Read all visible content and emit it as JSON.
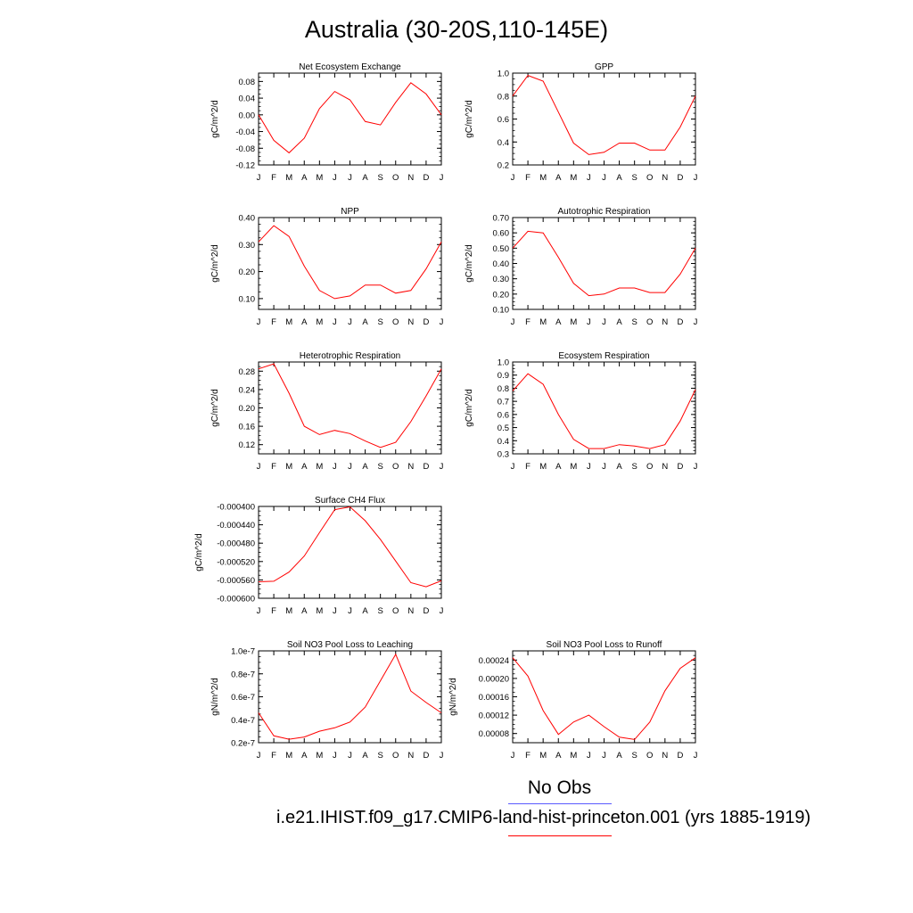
{
  "title": "Australia (30-20S,110-145E)",
  "legend": {
    "obs_label": "No Obs",
    "obs_color": "#5a5aff",
    "model_label": "i.e21.IHIST.f09_g17.CMIP6-land-hist-princeton.001 (yrs 1885-1919)",
    "model_color": "#ff0000"
  },
  "chart_data": [
    {
      "type": "line",
      "title": "Net Ecosystem Exchange",
      "ylabel": "gC/m^2/d",
      "categories": [
        "J",
        "F",
        "M",
        "A",
        "M",
        "J",
        "J",
        "A",
        "S",
        "O",
        "N",
        "D",
        "J"
      ],
      "ylim": [
        -0.12,
        0.1
      ],
      "yticks": [
        -0.12,
        -0.08,
        -0.04,
        0.0,
        0.04,
        0.08
      ],
      "ytick_labels": [
        "-0.12",
        "-0.08",
        "-0.04",
        "0.00",
        "0.04",
        "0.08"
      ],
      "series": [
        {
          "values": [
            0.0,
            -0.061,
            -0.091,
            -0.056,
            0.015,
            0.056,
            0.036,
            -0.016,
            -0.024,
            0.03,
            0.077,
            0.05,
            0.0
          ]
        }
      ]
    },
    {
      "type": "line",
      "title": "GPP",
      "ylabel": "gC/m^2/d",
      "categories": [
        "J",
        "F",
        "M",
        "A",
        "M",
        "J",
        "J",
        "A",
        "S",
        "O",
        "N",
        "D",
        "J"
      ],
      "ylim": [
        0.2,
        1.0
      ],
      "yticks": [
        0.2,
        0.4,
        0.6,
        0.8,
        1.0
      ],
      "ytick_labels": [
        "0.2",
        "0.4",
        "0.6",
        "0.8",
        "1.0"
      ],
      "series": [
        {
          "values": [
            0.8,
            0.98,
            0.93,
            0.66,
            0.39,
            0.29,
            0.31,
            0.39,
            0.39,
            0.33,
            0.33,
            0.53,
            0.8
          ]
        }
      ]
    },
    {
      "type": "line",
      "title": "NPP",
      "ylabel": "gC/m^2/d",
      "categories": [
        "J",
        "F",
        "M",
        "A",
        "M",
        "J",
        "J",
        "A",
        "S",
        "O",
        "N",
        "D",
        "J"
      ],
      "ylim": [
        0.06,
        0.4
      ],
      "yticks": [
        0.1,
        0.2,
        0.3,
        0.4
      ],
      "ytick_labels": [
        "0.10",
        "0.20",
        "0.30",
        "0.40"
      ],
      "series": [
        {
          "values": [
            0.31,
            0.37,
            0.33,
            0.22,
            0.13,
            0.1,
            0.11,
            0.15,
            0.15,
            0.12,
            0.13,
            0.21,
            0.31
          ]
        }
      ]
    },
    {
      "type": "line",
      "title": "Autotrophic Respiration",
      "ylabel": "gC/m^2/d",
      "categories": [
        "J",
        "F",
        "M",
        "A",
        "M",
        "J",
        "J",
        "A",
        "S",
        "O",
        "N",
        "D",
        "J"
      ],
      "ylim": [
        0.1,
        0.7
      ],
      "yticks": [
        0.1,
        0.2,
        0.3,
        0.4,
        0.5,
        0.6,
        0.7
      ],
      "ytick_labels": [
        "0.10",
        "0.20",
        "0.30",
        "0.40",
        "0.50",
        "0.60",
        "0.70"
      ],
      "series": [
        {
          "values": [
            0.5,
            0.61,
            0.6,
            0.44,
            0.27,
            0.19,
            0.2,
            0.24,
            0.24,
            0.21,
            0.21,
            0.33,
            0.5
          ]
        }
      ]
    },
    {
      "type": "line",
      "title": "Heterotrophic Respiration",
      "ylabel": "gC/m^2/d",
      "categories": [
        "J",
        "F",
        "M",
        "A",
        "M",
        "J",
        "J",
        "A",
        "S",
        "O",
        "N",
        "D",
        "J"
      ],
      "ylim": [
        0.1,
        0.3
      ],
      "yticks": [
        0.12,
        0.16,
        0.2,
        0.24,
        0.28
      ],
      "ytick_labels": [
        "0.12",
        "0.16",
        "0.20",
        "0.24",
        "0.28"
      ],
      "series": [
        {
          "values": [
            0.285,
            0.296,
            0.232,
            0.16,
            0.142,
            0.151,
            0.144,
            0.128,
            0.114,
            0.125,
            0.17,
            0.226,
            0.285
          ]
        }
      ]
    },
    {
      "type": "line",
      "title": "Ecosystem Respiration",
      "ylabel": "gC/m^2/d",
      "categories": [
        "J",
        "F",
        "M",
        "A",
        "M",
        "J",
        "J",
        "A",
        "S",
        "O",
        "N",
        "D",
        "J"
      ],
      "ylim": [
        0.3,
        1.0
      ],
      "yticks": [
        0.3,
        0.4,
        0.5,
        0.6,
        0.7,
        0.8,
        0.9,
        1.0
      ],
      "ytick_labels": [
        "0.3",
        "0.4",
        "0.5",
        "0.6",
        "0.7",
        "0.8",
        "0.9",
        "1.0"
      ],
      "series": [
        {
          "values": [
            0.78,
            0.91,
            0.83,
            0.6,
            0.41,
            0.34,
            0.34,
            0.37,
            0.36,
            0.34,
            0.37,
            0.55,
            0.79
          ]
        }
      ]
    },
    {
      "type": "line",
      "title": "Surface CH4 Flux",
      "ylabel": "gC/m^2/d",
      "categories": [
        "J",
        "F",
        "M",
        "A",
        "M",
        "J",
        "J",
        "A",
        "S",
        "O",
        "N",
        "D",
        "J"
      ],
      "ylim": [
        -0.0006,
        -0.0004
      ],
      "yticks": [
        -0.0006,
        -0.00056,
        -0.00052,
        -0.00048,
        -0.00044,
        -0.0004
      ],
      "ytick_labels": [
        "-0.000600",
        "-0.000560",
        "-0.000520",
        "-0.000480",
        "-0.000440",
        "-0.000400"
      ],
      "series": [
        {
          "values": [
            -0.000564,
            -0.000563,
            -0.000543,
            -0.000508,
            -0.000457,
            -0.000407,
            -0.000401,
            -0.000431,
            -0.000472,
            -0.000519,
            -0.000566,
            -0.000575,
            -0.000562
          ]
        }
      ]
    },
    {
      "type": "line",
      "title": "Soil NO3 Pool Loss to Leaching",
      "ylabel": "gN/m^2/d",
      "categories": [
        "J",
        "F",
        "M",
        "A",
        "M",
        "J",
        "J",
        "A",
        "S",
        "O",
        "N",
        "D",
        "J"
      ],
      "ylim": [
        2e-08,
        1e-07
      ],
      "yticks": [
        2e-08,
        4e-08,
        6e-08,
        8e-08,
        1e-07
      ],
      "ytick_labels": [
        "0.2e-7",
        "0.4e-7",
        "0.6e-7",
        "0.8e-7",
        "1.0e-7"
      ],
      "series": [
        {
          "values": [
            4.6e-08,
            2.6e-08,
            2.3e-08,
            2.5e-08,
            3e-08,
            3.3e-08,
            3.8e-08,
            5.1e-08,
            7.4e-08,
            9.7e-08,
            6.5e-08,
            5.5e-08,
            4.6e-08
          ]
        }
      ]
    },
    {
      "type": "line",
      "title": "Soil NO3 Pool Loss to Runoff",
      "ylabel": "gN/m^2/d",
      "categories": [
        "J",
        "F",
        "M",
        "A",
        "M",
        "J",
        "J",
        "A",
        "S",
        "O",
        "N",
        "D",
        "J"
      ],
      "ylim": [
        6e-05,
        0.00026
      ],
      "yticks": [
        8e-05,
        0.00012,
        0.00016,
        0.0002,
        0.00024
      ],
      "ytick_labels": [
        "0.00008",
        "0.00012",
        "0.00016",
        "0.00020",
        "0.00024"
      ],
      "series": [
        {
          "values": [
            0.000245,
            0.000205,
            0.00013,
            7.8e-05,
            0.000105,
            0.00012,
            9.5e-05,
            7.2e-05,
            6.7e-05,
            0.000105,
            0.000173,
            0.000222,
            0.000245
          ]
        }
      ]
    }
  ]
}
